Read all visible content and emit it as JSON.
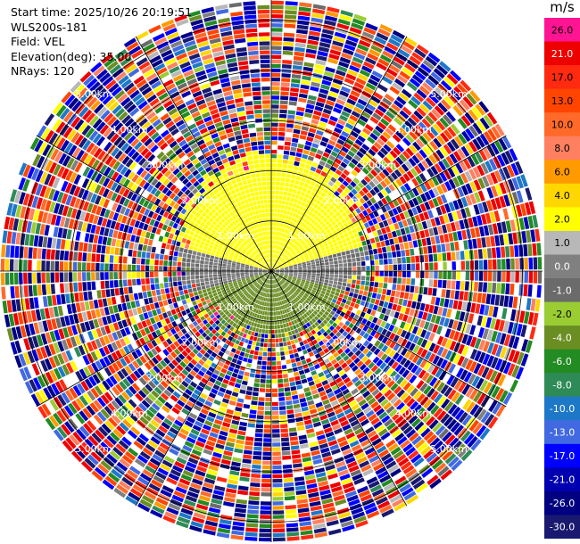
{
  "info": {
    "start_time": "Start time: 2025/10/26 20:19:51",
    "station": "WLS200s-181",
    "field": "Field: VEL",
    "elevation": "Elevation(deg): 35.00",
    "nrays": "NRays: 120"
  },
  "colorbar": {
    "unit": "m/s",
    "levels": [
      "26.0",
      "21.0",
      "17.0",
      "13.0",
      "10.0",
      "8.0",
      "6.0",
      "4.0",
      "2.0",
      "1.0",
      "0.0",
      "-1.0",
      "-2.0",
      "-4.0",
      "-6.0",
      "-8.0",
      "-10.0",
      "-13.0",
      "-17.0",
      "-21.0",
      "-26.0",
      "-30.0"
    ],
    "colors": [
      "#ff1493",
      "#ee0000",
      "#ff2a10",
      "#ff4500",
      "#ff6a2a",
      "#ff8060",
      "#ff9a00",
      "#ffd700",
      "#ffff00",
      "#b8b8b8",
      "#808080",
      "#6b6b6b",
      "#9acd32",
      "#6b8e23",
      "#228b22",
      "#2e8b57",
      "#1e78c8",
      "#4169e1",
      "#0000ff",
      "#0000b0",
      "#000080",
      "#191970"
    ]
  },
  "chart_data": {
    "type": "heatmap",
    "projection": "polar (PPI)",
    "field": "VEL",
    "unit": "m/s",
    "nrays": 120,
    "elevation_deg": 35.0,
    "range_rings_km": [
      1.0,
      2.0,
      3.0,
      4.0,
      5.0
    ],
    "ring_labels": {
      "r1": "1.00km",
      "r2": "2.00km",
      "r3": "3.00km",
      "r4": "4.00km",
      "r5": "5.00km"
    },
    "max_range_km": 5.4,
    "velocity_range": [
      -30.0,
      26.0
    ],
    "near_field": {
      "north_sector_m_s": 3.0,
      "south_sector_m_s": -3.0,
      "west_east_transition_m_s": 0.0
    },
    "far_field": "noise"
  }
}
